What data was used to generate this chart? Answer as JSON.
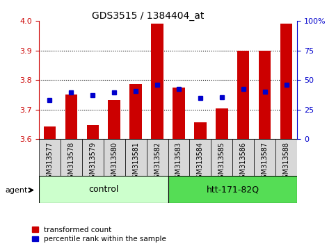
{
  "title": "GDS3515 / 1384404_at",
  "samples": [
    "GSM313577",
    "GSM313578",
    "GSM313579",
    "GSM313580",
    "GSM313581",
    "GSM313582",
    "GSM313583",
    "GSM313584",
    "GSM313585",
    "GSM313586",
    "GSM313587",
    "GSM313588"
  ],
  "red_values": [
    3.643,
    3.75,
    3.648,
    3.733,
    3.786,
    3.99,
    3.775,
    3.657,
    3.703,
    3.9,
    3.9,
    3.99
  ],
  "blue_values": [
    3.733,
    3.757,
    3.748,
    3.758,
    3.762,
    3.783,
    3.77,
    3.74,
    3.742,
    3.77,
    3.76,
    3.783
  ],
  "ylim_left": [
    3.6,
    4.0
  ],
  "ylim_right": [
    0,
    100
  ],
  "yticks_left": [
    3.6,
    3.7,
    3.8,
    3.9,
    4.0
  ],
  "yticks_right": [
    0,
    25,
    50,
    75,
    100
  ],
  "ytick_labels_right": [
    "0",
    "25",
    "50",
    "75",
    "100%"
  ],
  "group_labels": [
    "control",
    "htt-171-82Q"
  ],
  "group_colors": [
    "#ccffcc",
    "#55dd55"
  ],
  "agent_label": "agent",
  "legend_red": "transformed count",
  "legend_blue": "percentile rank within the sample",
  "bar_color": "#cc0000",
  "dot_color": "#0000cc",
  "baseline": 3.6,
  "bar_width": 0.55,
  "dot_size": 4,
  "grid_vals": [
    3.7,
    3.8,
    3.9
  ],
  "xlabel_color": "#cc0000",
  "ylabel_right_color": "#0000cc",
  "sample_box_color": "#d8d8d8",
  "tick_fontsize": 8,
  "label_fontsize": 7,
  "group_fontsize": 9
}
